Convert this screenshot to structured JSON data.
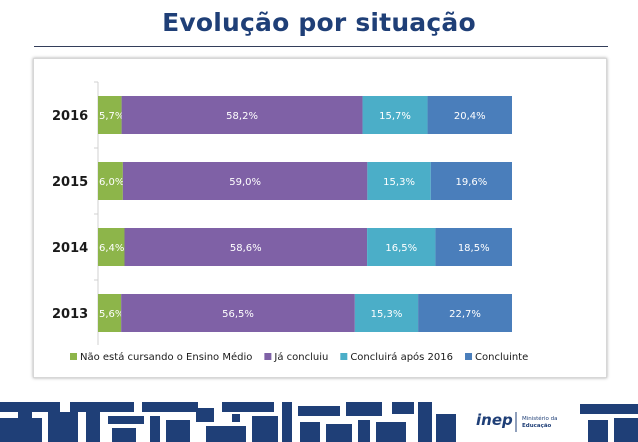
{
  "title": "Evolução por situação",
  "chart_data": {
    "type": "bar",
    "orientation": "horizontal",
    "stacked": "percent",
    "categories": [
      "2016",
      "2015",
      "2014",
      "2013"
    ],
    "series": [
      {
        "name": "Não está cursando o Ensino Médio",
        "color": "#8db54a",
        "values": [
          5.7,
          6.0,
          6.4,
          5.6
        ],
        "labels": [
          "5,7%",
          "6,0%",
          "6,4%",
          "5,6%"
        ]
      },
      {
        "name": "Já concluiu",
        "color": "#7f61a6",
        "values": [
          58.2,
          59.0,
          58.6,
          56.5
        ],
        "labels": [
          "58,2%",
          "59,0%",
          "58,6%",
          "56,5%"
        ]
      },
      {
        "name": "Concluirá após 2016",
        "color": "#4baec8",
        "values": [
          15.7,
          15.3,
          16.5,
          15.3
        ],
        "labels": [
          "15,7%",
          "15,3%",
          "16,5%",
          "15,3%"
        ]
      },
      {
        "name": "Concluinte",
        "color": "#4a7ebb",
        "values": [
          20.4,
          19.6,
          18.5,
          22.7
        ],
        "labels": [
          "20,4%",
          "19,6%",
          "18,5%",
          "22,7%"
        ]
      }
    ],
    "legend": "bottom",
    "grid": false
  },
  "footer": {
    "logo_text": "inep",
    "ministry_line1": "Ministério da",
    "ministry_line2": "Educação"
  }
}
